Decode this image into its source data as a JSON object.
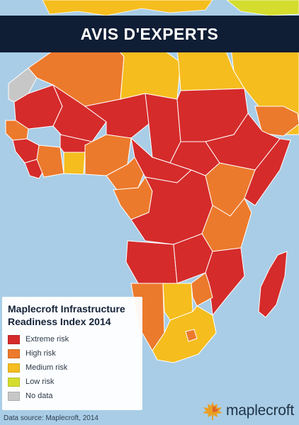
{
  "banner": {
    "title": "AVIS D'EXPERTS"
  },
  "legend": {
    "title_line1": "Maplecroft Infrastructure",
    "title_line2": "Readiness Index 2014",
    "items": [
      {
        "label": "Extreme risk",
        "color": "#d52b2b"
      },
      {
        "label": "High risk",
        "color": "#ec7a2c"
      },
      {
        "label": "Medium risk",
        "color": "#f5bd1e"
      },
      {
        "label": "Low risk",
        "color": "#d4dd2e"
      },
      {
        "label": "No data",
        "color": "#c7c7c7"
      }
    ]
  },
  "source": "Data source: Maplecroft, 2014",
  "brand": {
    "name": "maplecroft",
    "icon": "maple-leaf-icon"
  },
  "colors": {
    "ocean": "#a9cde6",
    "banner": "#0f1d35",
    "extreme": "#d52b2b",
    "high": "#ec7a2c",
    "medium": "#f5bd1e",
    "low": "#d4dd2e",
    "nodata": "#c7c7c7"
  }
}
